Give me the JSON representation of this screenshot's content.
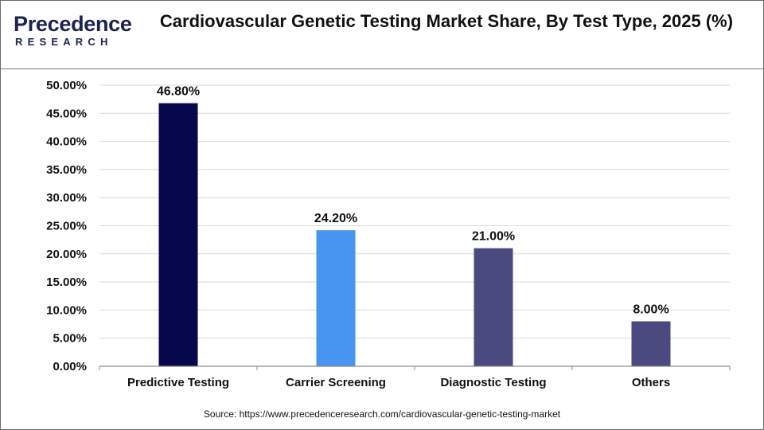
{
  "brand": {
    "logo_top": "recedence",
    "logo_letter": "P",
    "logo_bottom": "RESEARCH",
    "color": "#1b2350"
  },
  "chart_data": {
    "type": "bar",
    "title": "Cardiovascular Genetic Testing Market Share, By Test Type, 2025 (%)",
    "categories": [
      "Predictive Testing",
      "Carrier Screening",
      "Diagnostic Testing",
      "Others"
    ],
    "values": [
      46.8,
      24.2,
      21.0,
      8.0
    ],
    "data_labels": [
      "46.80%",
      "24.20%",
      "21.00%",
      "8.00%"
    ],
    "colors": [
      "#07074e",
      "#4895ef",
      "#4a4a80",
      "#4a4a80"
    ],
    "yticks": [
      "0.00%",
      "5.00%",
      "10.00%",
      "15.00%",
      "20.00%",
      "25.00%",
      "30.00%",
      "35.00%",
      "40.00%",
      "45.00%",
      "50.00%"
    ],
    "ylim": [
      0,
      50
    ],
    "xlabel": "",
    "ylabel": "",
    "grid": true
  },
  "source": "Source: https://www.precedenceresearch.com/cardiovascular-genetic-testing-market"
}
